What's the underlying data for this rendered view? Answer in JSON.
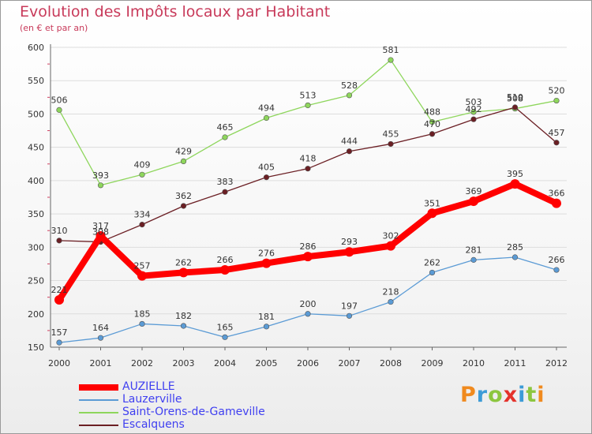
{
  "title": "Evolution des Impôts locaux par Habitant",
  "subtitle": "(en € et par an)",
  "logo": {
    "text": "Proxiti",
    "colors": [
      "#f08a1e",
      "#3c9bd7",
      "#8cc63f",
      "#e4322b",
      "#3c9bd7",
      "#8cc63f",
      "#f08a1e"
    ]
  },
  "chart_data": {
    "type": "line",
    "x": [
      "2000",
      "2001",
      "2002",
      "2003",
      "2004",
      "2005",
      "2006",
      "2007",
      "2008",
      "2009",
      "2010",
      "2011",
      "2012"
    ],
    "ylim": [
      150,
      600
    ],
    "yticks": [
      150,
      200,
      250,
      300,
      350,
      400,
      450,
      500,
      550,
      600
    ],
    "grid": true,
    "legend_position": "bottom-left",
    "series": [
      {
        "name": "AUZIELLE",
        "color": "#ff0000",
        "values": [
          221,
          317,
          257,
          262,
          266,
          276,
          286,
          293,
          302,
          351,
          369,
          395,
          366
        ]
      },
      {
        "name": "Lauzerville",
        "color": "#5b9bd5",
        "values": [
          157,
          164,
          185,
          182,
          165,
          181,
          200,
          197,
          218,
          262,
          281,
          285,
          266
        ]
      },
      {
        "name": "Saint-Orens-de-Gameville",
        "color": "#8ed65c",
        "values": [
          506,
          393,
          409,
          429,
          465,
          494,
          513,
          528,
          581,
          488,
          503,
          508,
          520
        ]
      },
      {
        "name": "Escalquens",
        "color": "#6b1f24",
        "values": [
          310,
          308,
          334,
          362,
          383,
          405,
          418,
          444,
          455,
          470,
          492,
          510,
          457
        ]
      }
    ]
  }
}
